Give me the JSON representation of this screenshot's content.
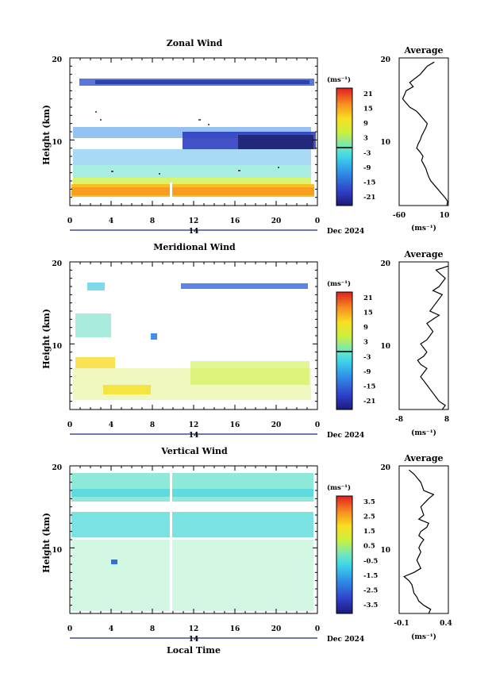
{
  "panels": [
    {
      "id": "zonal",
      "title": "Zonal Wind",
      "ylabel": "Height (km)",
      "units": "(ms⁻¹)",
      "cb_ticks": [
        "21",
        "15",
        "9",
        "3",
        "-3",
        "-9",
        "-15",
        "-21"
      ],
      "avg_title": "Average",
      "avg_xticks": [
        "-60",
        "10"
      ],
      "avg_xlabel": "(ms⁻¹)"
    },
    {
      "id": "meridional",
      "title": "Meridional Wind",
      "ylabel": "Height (km)",
      "units": "(ms⁻¹)",
      "cb_ticks": [
        "21",
        "15",
        "9",
        "3",
        "-3",
        "-9",
        "-15",
        "-21"
      ],
      "avg_title": "Average",
      "avg_xticks": [
        "-8",
        "8"
      ],
      "avg_xlabel": "(ms⁻¹)"
    },
    {
      "id": "vertical",
      "title": "Vertical Wind",
      "ylabel": "Height (km)",
      "units": "(ms⁻¹)",
      "cb_ticks": [
        "3.5",
        "2.5",
        "1.5",
        "0.5",
        "-0.5",
        "-1.5",
        "-2.5",
        "-3.5"
      ],
      "avg_title": "Average",
      "avg_xticks": [
        "-0.1",
        "0.4"
      ],
      "avg_xlabel": "(ms⁻¹)"
    }
  ],
  "time_ticks": [
    "0",
    "4",
    "8",
    "12",
    "16",
    "20",
    "0"
  ],
  "height_ticks": [
    "20",
    "10"
  ],
  "date_day": "14",
  "date_label": "Dec 2024",
  "xlabel": "Local Time",
  "chart_data": [
    {
      "type": "heatmap",
      "title": "Zonal Wind",
      "xlabel": "",
      "ylabel": "Height (km)",
      "x_range_hours": [
        0,
        24
      ],
      "ylim": [
        2,
        20
      ],
      "colorbar_range": [
        -24,
        24
      ],
      "colorbar_units": "ms-1",
      "bands": [
        {
          "height_km": [
            2.5,
            4.5
          ],
          "value": 15
        },
        {
          "height_km": [
            4.5,
            6.5
          ],
          "value": 6
        },
        {
          "height_km": [
            6.5,
            9
          ],
          "value": -3
        },
        {
          "height_km": [
            9,
            12
          ],
          "value": -10
        },
        {
          "height_km": [
            12,
            14
          ],
          "value": 0
        },
        {
          "height_km": [
            16.5,
            17.5
          ],
          "value": -14
        }
      ]
    },
    {
      "type": "line",
      "title": "Average",
      "xlabel": "(ms⁻¹)",
      "ylabel": "",
      "xlim": [
        -60,
        10
      ],
      "ylim": [
        2,
        20
      ],
      "x": [
        8,
        9,
        5,
        0,
        -5,
        -10,
        -15,
        -18,
        -20,
        -22,
        -25,
        -28,
        -26,
        -30,
        -35,
        -33,
        -30,
        -28,
        -25,
        -22,
        -20,
        -25,
        -30,
        -35,
        -45,
        -55,
        -50,
        -40,
        -45,
        -30,
        -20,
        -10
      ],
      "y": [
        2,
        2.5,
        3,
        3.5,
        4,
        4.5,
        5,
        5.5,
        6,
        6.5,
        7,
        7.5,
        8,
        8.5,
        9,
        9.5,
        10,
        10.5,
        11,
        11.5,
        12,
        12.5,
        13,
        13.5,
        14,
        15,
        16,
        16.5,
        17,
        18,
        19,
        19.5
      ]
    },
    {
      "type": "heatmap",
      "title": "Meridional Wind",
      "xlabel": "",
      "ylabel": "Height (km)",
      "x_range_hours": [
        0,
        24
      ],
      "ylim": [
        2,
        20
      ],
      "colorbar_range": [
        -24,
        24
      ],
      "colorbar_units": "ms-1",
      "bands": [
        {
          "height_km": [
            2.5,
            7
          ],
          "value": 9
        },
        {
          "height_km": [
            7,
            8.5
          ],
          "value": 13
        },
        {
          "height_km": [
            11,
            14
          ],
          "value": -2
        },
        {
          "height_km": [
            17,
            17.8
          ],
          "value": -12
        }
      ]
    },
    {
      "type": "line",
      "title": "Average",
      "xlabel": "(ms⁻¹)",
      "ylabel": "",
      "xlim": [
        -8,
        8
      ],
      "ylim": [
        2,
        20
      ],
      "x": [
        6,
        7,
        5,
        4,
        3,
        2,
        1,
        0,
        -1,
        0,
        1,
        -1,
        -2,
        0,
        1,
        0,
        -1,
        1,
        2,
        3,
        2,
        1,
        3,
        5,
        2,
        4,
        6,
        3,
        5,
        7,
        4,
        8
      ],
      "y": [
        2,
        2.5,
        3,
        3.5,
        4,
        4.5,
        5,
        5.5,
        6,
        6.5,
        7,
        7.5,
        8,
        8.5,
        9,
        9.5,
        10,
        10.5,
        11,
        11.5,
        12,
        12.5,
        13,
        13.5,
        14,
        15,
        16,
        16.5,
        17,
        18,
        19,
        19.5
      ]
    },
    {
      "type": "heatmap",
      "title": "Vertical Wind",
      "xlabel": "Local Time",
      "ylabel": "Height (km)",
      "x_range_hours": [
        0,
        24
      ],
      "ylim": [
        2,
        20
      ],
      "colorbar_range": [
        -4,
        4
      ],
      "colorbar_units": "ms-1",
      "bands": [
        {
          "height_km": [
            2.5,
            11.5
          ],
          "value": 0.3
        },
        {
          "height_km": [
            11.5,
            14.5
          ],
          "value": -0.2
        },
        {
          "height_km": [
            16,
            19.5
          ],
          "value": -0.2
        }
      ]
    },
    {
      "type": "line",
      "title": "Average",
      "xlabel": "(ms⁻¹)",
      "ylabel": "",
      "xlim": [
        -0.1,
        0.4
      ],
      "ylim": [
        2,
        20
      ],
      "x": [
        0.2,
        0.22,
        0.15,
        0.1,
        0.08,
        0.05,
        0.04,
        0.03,
        0.0,
        -0.05,
        0.05,
        0.12,
        0.1,
        0.08,
        0.1,
        0.12,
        0.1,
        0.12,
        0.15,
        0.1,
        0.12,
        0.18,
        0.2,
        0.1,
        0.15,
        0.12,
        0.2,
        0.25,
        0.15,
        0.12,
        0.05,
        0.0
      ],
      "y": [
        2,
        2.5,
        3,
        3.5,
        4,
        4.5,
        5,
        5.5,
        6,
        6.5,
        7,
        7.5,
        8,
        8.5,
        9,
        9.5,
        10,
        10.5,
        11,
        11.5,
        12,
        12.5,
        13,
        13.5,
        14,
        15,
        16,
        16.5,
        17,
        18,
        19,
        19.5
      ]
    }
  ]
}
